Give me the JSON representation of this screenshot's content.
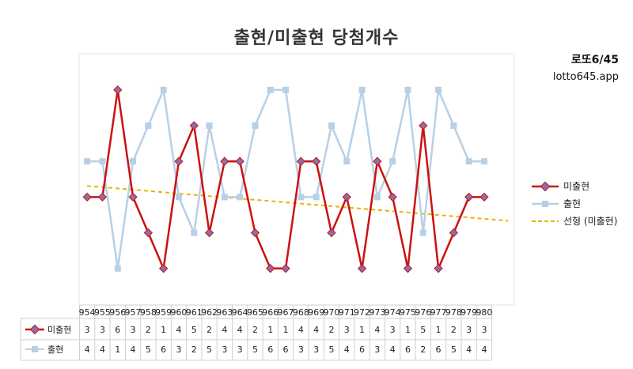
{
  "title": "출현/미출현 당첨개수",
  "brand": {
    "line1": "로또6/45",
    "line2": "lotto645.app"
  },
  "colors": {
    "miss": "#cc1111",
    "appear": "#b8d0e6",
    "trend": "#e8b400",
    "marker_fill_miss": "#8a6fa8"
  },
  "chart_data": {
    "type": "line",
    "title": "출현/미출현 당첨개수",
    "categories": [
      "954",
      "955",
      "956",
      "957",
      "958",
      "959",
      "960",
      "961",
      "962",
      "963",
      "964",
      "965",
      "966",
      "967",
      "968",
      "969",
      "970",
      "971",
      "972",
      "973",
      "974",
      "975",
      "976",
      "977",
      "978",
      "979",
      "980"
    ],
    "series": [
      {
        "name": "미출현",
        "values": [
          3,
          3,
          6,
          3,
          2,
          1,
          4,
          5,
          2,
          4,
          4,
          2,
          1,
          1,
          4,
          4,
          2,
          3,
          1,
          4,
          3,
          1,
          5,
          1,
          2,
          3,
          3
        ]
      },
      {
        "name": "출현",
        "values": [
          4,
          4,
          1,
          4,
          5,
          6,
          3,
          2,
          5,
          3,
          3,
          5,
          6,
          6,
          3,
          3,
          5,
          4,
          6,
          3,
          4,
          6,
          2,
          6,
          5,
          4,
          4
        ]
      }
    ],
    "trendline": {
      "name": "선형 (미출현)"
    },
    "ylim": [
      0,
      7
    ],
    "legend_position": "right"
  }
}
